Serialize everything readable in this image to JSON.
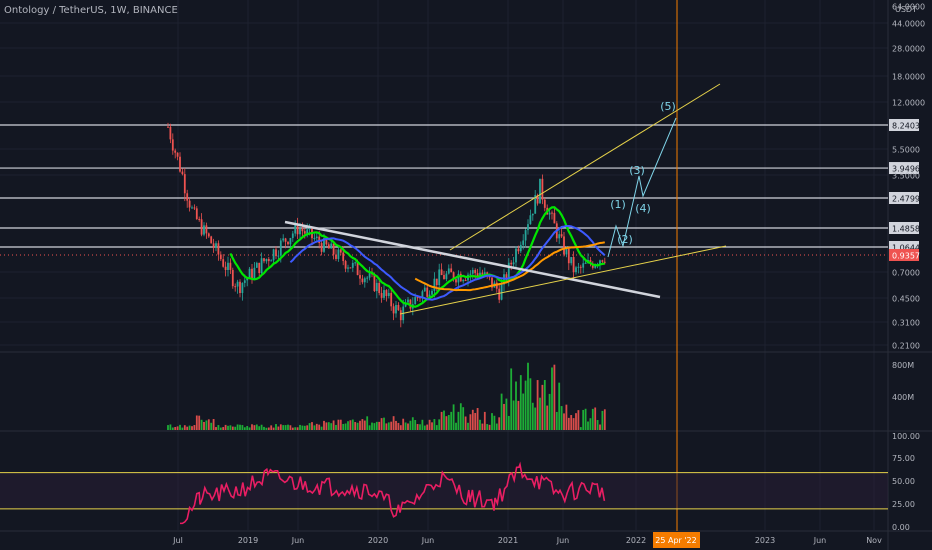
{
  "header": {
    "title": "Ontology / TetherUS, 1W, BINANCE"
  },
  "price_axis": {
    "unit": "USDT",
    "ticks": [
      "64.0000",
      "44.0000",
      "28.0000",
      "18.0000",
      "12.0000",
      "8.2403",
      "5.5000",
      "3.9496",
      "3.5000",
      "2.4799",
      "1.4858",
      "1.0644",
      "0.9357",
      "0.7000",
      "0.4500",
      "0.3100",
      "0.2100"
    ],
    "labels_boxed": [
      "8.2403",
      "3.9496",
      "2.4799",
      "1.4858",
      "1.0644"
    ],
    "current_price": "0.9357"
  },
  "volume_axis": {
    "ticks": [
      "800M",
      "400M"
    ]
  },
  "rsi_axis": {
    "ticks": [
      "100.00",
      "75.00",
      "50.00",
      "25.00",
      "0.00"
    ]
  },
  "time_axis": {
    "ticks": [
      "Jul",
      "2019",
      "Jun",
      "2020",
      "Jun",
      "2021",
      "Jun",
      "2022",
      "2023",
      "Jun",
      "Nov"
    ],
    "highlight": "25 Apr '22"
  },
  "wave_labels": [
    "(1)",
    "(2)",
    "(3)",
    "(4)",
    "(5)"
  ],
  "colors": {
    "background": "#131722",
    "up": "#26a69a",
    "down": "#ef5350",
    "ema_green": "#00e600",
    "ema_blue": "#3d5afe",
    "ema_orange": "#ff9800",
    "trend_white": "#d1d4dc",
    "trend_yellow": "#e6d24a",
    "wave_cyan": "#7fd4e8",
    "rsi": "#e91e63",
    "vertical_marker": "#f57c00",
    "volume_bar": "#1fbf3a"
  },
  "chart_data": {
    "type": "line",
    "scale": "log",
    "panes": [
      "price",
      "volume",
      "rsi"
    ],
    "price_series": {
      "name": "",
      "x": [
        "2018-06",
        "2018-09",
        "2018-12",
        "2019-03",
        "2019-06",
        "2019-09",
        "2019-12",
        "2020-03",
        "2020-06",
        "2020-09",
        "2020-12",
        "2021-02",
        "2021-05",
        "2021-07",
        "2021-10"
      ],
      "close": [
        8.0,
        1.9,
        0.55,
        0.9,
        1.5,
        0.9,
        0.6,
        0.35,
        0.65,
        0.7,
        0.5,
        2.9,
        1.2,
        0.7,
        0.94
      ]
    },
    "horizontal_levels": [
      8.2403,
      3.9496,
      2.4799,
      1.4858,
      1.0644
    ],
    "current_price": 0.9357,
    "rsi_levels": [
      75,
      25
    ],
    "rsi": {
      "x": [
        "2018-07",
        "2018-10",
        "2019-01",
        "2019-04",
        "2019-06",
        "2019-09",
        "2019-12",
        "2020-03",
        "2020-06",
        "2020-09",
        "2020-12",
        "2021-02",
        "2021-05",
        "2021-07",
        "2021-10"
      ],
      "values": [
        5,
        40,
        50,
        70,
        60,
        55,
        50,
        20,
        68,
        40,
        35,
        80,
        45,
        55,
        48
      ]
    },
    "ylim": [
      0.2,
      64
    ],
    "grid": true
  }
}
